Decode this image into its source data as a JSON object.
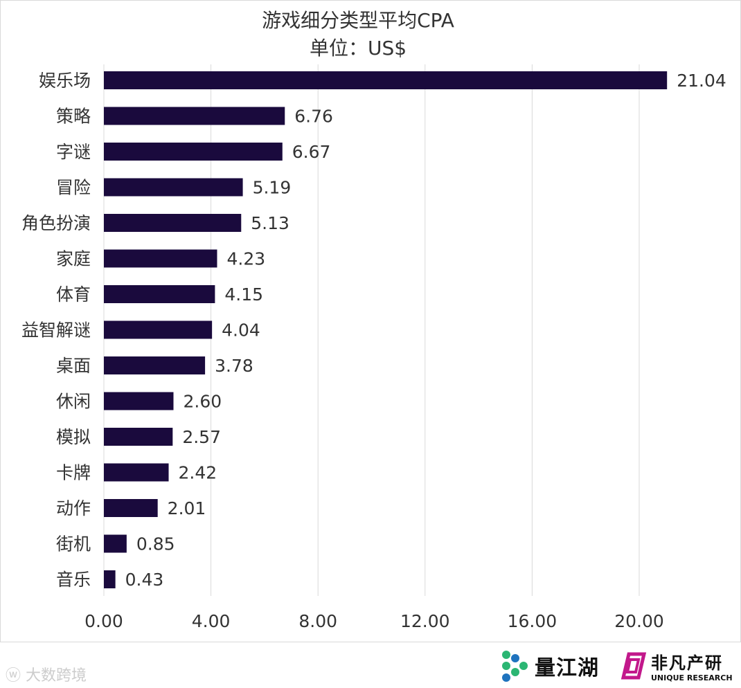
{
  "chart_data": {
    "type": "bar",
    "orientation": "horizontal",
    "title": "游戏细分类型平均CPA",
    "subtitle": "单位：US$",
    "categories": [
      "娱乐场",
      "策略",
      "字谜",
      "冒险",
      "角色扮演",
      "家庭",
      "体育",
      "益智解谜",
      "桌面",
      "休闲",
      "模拟",
      "卡牌",
      "动作",
      "街机",
      "音乐"
    ],
    "values": [
      21.04,
      6.76,
      6.67,
      5.19,
      5.13,
      4.23,
      4.15,
      4.04,
      3.78,
      2.6,
      2.57,
      2.42,
      2.01,
      0.85,
      0.43
    ],
    "value_labels": [
      "21.04",
      "6.76",
      "6.67",
      "5.19",
      "5.13",
      "4.23",
      "4.15",
      "4.04",
      "3.78",
      "2.60",
      "2.57",
      "2.42",
      "2.01",
      "0.85",
      "0.43"
    ],
    "xlim": [
      0,
      22
    ],
    "xticks": [
      0,
      4,
      8,
      12,
      16,
      20
    ],
    "xtick_labels": [
      "0.00",
      "4.00",
      "8.00",
      "12.00",
      "16.00",
      "20.00"
    ],
    "grid": true,
    "legend": "none",
    "bar_color": "#1a0a3d"
  },
  "footer": {
    "watermark": "大数跨境",
    "brand_left": "量江湖",
    "brand_right_cn": "非凡产研",
    "brand_right_en": "UNIQUE RESEARCH"
  },
  "colors": {
    "bar": "#1a0a3d",
    "grid": "#d9d9d9",
    "text": "#333333",
    "logo_green": "#2bb673",
    "logo_blue": "#1e73be",
    "logo_magenta": "#c2188b"
  }
}
